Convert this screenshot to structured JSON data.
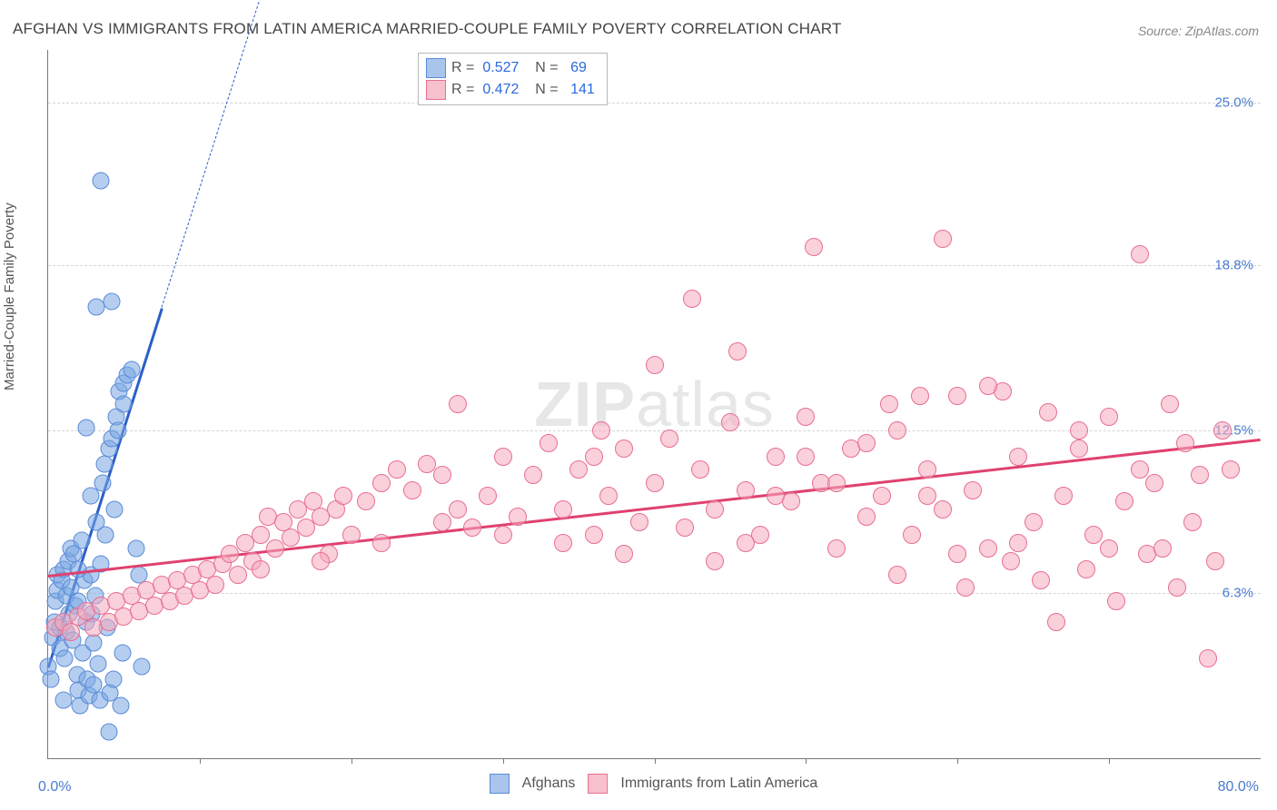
{
  "title": "AFGHAN VS IMMIGRANTS FROM LATIN AMERICA MARRIED-COUPLE FAMILY POVERTY CORRELATION CHART",
  "source_prefix": "Source: ",
  "source_name": "ZipAtlas.com",
  "ylabel": "Married-Couple Family Poverty",
  "watermark_bold": "ZIP",
  "watermark_light": "atlas",
  "x_axis": {
    "min": 0.0,
    "max": 80.0,
    "min_label": "0.0%",
    "max_label": "80.0%",
    "tick_positions": [
      10,
      20,
      30,
      40,
      50,
      60,
      70
    ]
  },
  "y_axis": {
    "min": 0.0,
    "max": 27.0,
    "ticks": [
      {
        "value": 6.3,
        "label": "6.3%"
      },
      {
        "value": 12.5,
        "label": "12.5%"
      },
      {
        "value": 18.8,
        "label": "18.8%"
      },
      {
        "value": 25.0,
        "label": "25.0%"
      }
    ]
  },
  "correlation_box": {
    "rows": [
      {
        "swatch_fill": "#a9c5ec",
        "swatch_border": "#5a8bd8",
        "r": "0.527",
        "n": "69"
      },
      {
        "swatch_fill": "#f6c1cd",
        "swatch_border": "#e76f92",
        "r": "0.472",
        "n": "141"
      }
    ]
  },
  "bottom_legend": [
    {
      "swatch_fill": "#a9c5ec",
      "swatch_border": "#5a8bd8",
      "label": "Afghans"
    },
    {
      "swatch_fill": "#f6c1cd",
      "swatch_border": "#e76f92",
      "label": "Immigrants from Latin America"
    }
  ],
  "series": [
    {
      "name": "Afghans",
      "marker": {
        "radius": 8.5,
        "fill": "rgba(120,165,225,0.55)",
        "stroke": "#5a8bd8",
        "stroke_width": 1
      },
      "trend": {
        "color": "#2b5fc7",
        "width": 2.5,
        "solid_from": [
          0.0,
          3.5
        ],
        "solid_to": [
          7.5,
          17.2
        ],
        "dash_to": [
          14.0,
          29.0
        ]
      },
      "points": [
        [
          0.0,
          3.5
        ],
        [
          0.2,
          3.0
        ],
        [
          0.3,
          4.6
        ],
        [
          0.4,
          5.2
        ],
        [
          0.5,
          6.0
        ],
        [
          0.6,
          6.4
        ],
        [
          0.6,
          7.0
        ],
        [
          0.8,
          5.0
        ],
        [
          0.8,
          4.2
        ],
        [
          0.9,
          6.8
        ],
        [
          1.0,
          7.2
        ],
        [
          1.1,
          3.8
        ],
        [
          1.2,
          4.8
        ],
        [
          1.2,
          6.2
        ],
        [
          1.3,
          7.5
        ],
        [
          1.4,
          5.5
        ],
        [
          1.5,
          8.0
        ],
        [
          1.5,
          6.5
        ],
        [
          1.6,
          4.5
        ],
        [
          1.7,
          7.8
        ],
        [
          1.8,
          5.8
        ],
        [
          1.9,
          3.2
        ],
        [
          2.0,
          2.6
        ],
        [
          2.0,
          6.0
        ],
        [
          2.1,
          2.0
        ],
        [
          2.2,
          8.3
        ],
        [
          2.3,
          4.0
        ],
        [
          2.4,
          6.8
        ],
        [
          2.5,
          5.2
        ],
        [
          2.6,
          3.0
        ],
        [
          2.7,
          2.4
        ],
        [
          2.8,
          7.0
        ],
        [
          2.9,
          5.5
        ],
        [
          3.0,
          2.8
        ],
        [
          3.0,
          4.4
        ],
        [
          3.1,
          6.2
        ],
        [
          3.2,
          9.0
        ],
        [
          3.3,
          3.6
        ],
        [
          3.4,
          2.2
        ],
        [
          3.5,
          7.4
        ],
        [
          3.6,
          10.5
        ],
        [
          3.7,
          11.2
        ],
        [
          3.8,
          8.5
        ],
        [
          3.9,
          5.0
        ],
        [
          4.0,
          11.8
        ],
        [
          4.1,
          2.5
        ],
        [
          4.2,
          12.2
        ],
        [
          4.3,
          3.0
        ],
        [
          4.4,
          9.5
        ],
        [
          4.5,
          13.0
        ],
        [
          4.6,
          12.5
        ],
        [
          4.7,
          14.0
        ],
        [
          4.8,
          2.0
        ],
        [
          4.9,
          4.0
        ],
        [
          5.0,
          14.3
        ],
        [
          5.0,
          13.5
        ],
        [
          5.2,
          14.6
        ],
        [
          3.2,
          17.2
        ],
        [
          4.2,
          17.4
        ],
        [
          2.8,
          10.0
        ],
        [
          2.5,
          12.6
        ],
        [
          4.0,
          1.0
        ],
        [
          3.5,
          22.0
        ],
        [
          5.5,
          14.8
        ],
        [
          5.8,
          8.0
        ],
        [
          6.0,
          7.0
        ],
        [
          6.2,
          3.5
        ],
        [
          2.0,
          7.2
        ],
        [
          1.0,
          2.2
        ]
      ]
    },
    {
      "name": "Immigrants from Latin America",
      "marker": {
        "radius": 9,
        "fill": "rgba(245,170,190,0.55)",
        "stroke": "#e76f92",
        "stroke_width": 1
      },
      "trend": {
        "color": "#e0416f",
        "width": 2.5,
        "solid_from": [
          0.0,
          7.0
        ],
        "solid_to": [
          80.0,
          12.2
        ]
      },
      "points": [
        [
          0.5,
          5.0
        ],
        [
          1.0,
          5.2
        ],
        [
          1.5,
          4.8
        ],
        [
          2.0,
          5.4
        ],
        [
          2.5,
          5.6
        ],
        [
          3.0,
          5.0
        ],
        [
          3.5,
          5.8
        ],
        [
          4.0,
          5.2
        ],
        [
          4.5,
          6.0
        ],
        [
          5.0,
          5.4
        ],
        [
          5.5,
          6.2
        ],
        [
          6.0,
          5.6
        ],
        [
          6.5,
          6.4
        ],
        [
          7.0,
          5.8
        ],
        [
          7.5,
          6.6
        ],
        [
          8.0,
          6.0
        ],
        [
          8.5,
          6.8
        ],
        [
          9.0,
          6.2
        ],
        [
          9.5,
          7.0
        ],
        [
          10.0,
          6.4
        ],
        [
          10.5,
          7.2
        ],
        [
          11.0,
          6.6
        ],
        [
          11.5,
          7.4
        ],
        [
          12.0,
          7.8
        ],
        [
          12.5,
          7.0
        ],
        [
          13.0,
          8.2
        ],
        [
          13.5,
          7.5
        ],
        [
          14.0,
          8.5
        ],
        [
          14.5,
          9.2
        ],
        [
          15.0,
          8.0
        ],
        [
          15.5,
          9.0
        ],
        [
          16.0,
          8.4
        ],
        [
          16.5,
          9.5
        ],
        [
          17.0,
          8.8
        ],
        [
          17.5,
          9.8
        ],
        [
          18.0,
          9.2
        ],
        [
          18.5,
          7.8
        ],
        [
          19.0,
          9.5
        ],
        [
          19.5,
          10.0
        ],
        [
          20.0,
          8.5
        ],
        [
          21.0,
          9.8
        ],
        [
          22.0,
          10.5
        ],
        [
          23.0,
          11.0
        ],
        [
          24.0,
          10.2
        ],
        [
          25.0,
          11.2
        ],
        [
          26.0,
          9.0
        ],
        [
          27.0,
          9.5
        ],
        [
          27.0,
          13.5
        ],
        [
          28.0,
          8.8
        ],
        [
          29.0,
          10.0
        ],
        [
          30.0,
          11.5
        ],
        [
          31.0,
          9.2
        ],
        [
          32.0,
          10.8
        ],
        [
          33.0,
          12.0
        ],
        [
          34.0,
          9.5
        ],
        [
          35.0,
          11.0
        ],
        [
          36.0,
          8.5
        ],
        [
          36.5,
          12.5
        ],
        [
          37.0,
          10.0
        ],
        [
          38.0,
          11.8
        ],
        [
          39.0,
          9.0
        ],
        [
          40.0,
          10.5
        ],
        [
          41.0,
          12.2
        ],
        [
          42.0,
          8.8
        ],
        [
          42.5,
          17.5
        ],
        [
          43.0,
          11.0
        ],
        [
          44.0,
          9.5
        ],
        [
          45.0,
          12.8
        ],
        [
          45.5,
          15.5
        ],
        [
          46.0,
          10.2
        ],
        [
          47.0,
          8.5
        ],
        [
          48.0,
          11.5
        ],
        [
          49.0,
          9.8
        ],
        [
          50.0,
          13.0
        ],
        [
          50.5,
          19.5
        ],
        [
          51.0,
          10.5
        ],
        [
          52.0,
          8.0
        ],
        [
          53.0,
          11.8
        ],
        [
          54.0,
          9.2
        ],
        [
          55.0,
          10.0
        ],
        [
          55.5,
          13.5
        ],
        [
          56.0,
          12.5
        ],
        [
          57.0,
          8.5
        ],
        [
          57.5,
          13.8
        ],
        [
          58.0,
          11.0
        ],
        [
          59.0,
          9.5
        ],
        [
          59.0,
          19.8
        ],
        [
          60.0,
          13.8
        ],
        [
          60.5,
          6.5
        ],
        [
          61.0,
          10.2
        ],
        [
          62.0,
          8.0
        ],
        [
          63.0,
          14.0
        ],
        [
          63.5,
          7.5
        ],
        [
          64.0,
          11.5
        ],
        [
          65.0,
          9.0
        ],
        [
          65.5,
          6.8
        ],
        [
          66.0,
          13.2
        ],
        [
          66.5,
          5.2
        ],
        [
          67.0,
          10.0
        ],
        [
          68.0,
          11.8
        ],
        [
          68.5,
          7.2
        ],
        [
          69.0,
          8.5
        ],
        [
          70.0,
          13.0
        ],
        [
          70.5,
          6.0
        ],
        [
          71.0,
          9.8
        ],
        [
          72.0,
          11.0
        ],
        [
          72.5,
          7.8
        ],
        [
          73.0,
          10.5
        ],
        [
          73.5,
          8.0
        ],
        [
          74.0,
          13.5
        ],
        [
          74.5,
          6.5
        ],
        [
          75.0,
          12.0
        ],
        [
          75.5,
          9.0
        ],
        [
          76.0,
          10.8
        ],
        [
          76.5,
          3.8
        ],
        [
          77.0,
          7.5
        ],
        [
          77.5,
          12.5
        ],
        [
          78.0,
          11.0
        ],
        [
          72.0,
          19.2
        ],
        [
          56.0,
          7.0
        ],
        [
          58.0,
          10.0
        ],
        [
          60.0,
          7.8
        ],
        [
          62.0,
          14.2
        ],
        [
          64.0,
          8.2
        ],
        [
          40.0,
          15.0
        ],
        [
          48.0,
          10.0
        ],
        [
          52.0,
          10.5
        ],
        [
          44.0,
          7.5
        ],
        [
          38.0,
          7.8
        ],
        [
          34.0,
          8.2
        ],
        [
          30.0,
          8.5
        ],
        [
          26.0,
          10.8
        ],
        [
          22.0,
          8.2
        ],
        [
          18.0,
          7.5
        ],
        [
          14.0,
          7.2
        ],
        [
          46.0,
          8.2
        ],
        [
          50.0,
          11.5
        ],
        [
          68.0,
          12.5
        ],
        [
          70.0,
          8.0
        ],
        [
          54.0,
          12.0
        ],
        [
          36.0,
          11.5
        ]
      ]
    }
  ]
}
